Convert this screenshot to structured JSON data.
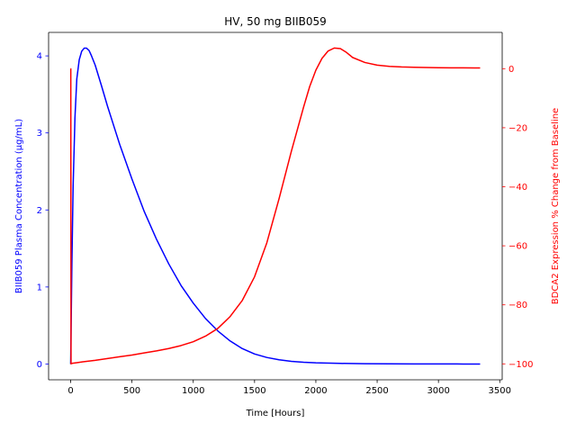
{
  "chart_data": {
    "type": "line",
    "title": "HV, 50 mg BIIB059",
    "xlabel": "Time [Hours]",
    "xlim": [
      -180,
      3520
    ],
    "x_ticks": [
      0,
      500,
      1000,
      1500,
      2000,
      2500,
      3000,
      3500
    ],
    "legend": "none",
    "grid": false,
    "axes": {
      "left": {
        "label": "BIIB059 Plasma Concentration (µg/mL)",
        "color": "#0000ff",
        "ylim": [
          -0.205,
          4.305
        ],
        "ticks": [
          0,
          1,
          2,
          3,
          4
        ]
      },
      "right": {
        "label": "BDCA2 Expression % Change from Baseline",
        "color": "#ff0000",
        "ylim": [
          -105.4,
          12.3
        ],
        "ticks": [
          -100,
          -80,
          -60,
          -40,
          -20,
          0
        ]
      }
    },
    "series": [
      {
        "axis": "left",
        "color": "#0000ff",
        "x": [
          0,
          10,
          20,
          35,
          50,
          70,
          90,
          110,
          130,
          150,
          170,
          200,
          250,
          300,
          400,
          500,
          600,
          700,
          800,
          900,
          1000,
          1100,
          1200,
          1300,
          1400,
          1500,
          1600,
          1700,
          1800,
          1900,
          2000,
          2200,
          2400,
          2600,
          2800,
          3000,
          3200,
          3340
        ],
        "y": [
          0,
          1.3,
          2.3,
          3.2,
          3.7,
          3.95,
          4.06,
          4.1,
          4.1,
          4.07,
          4.0,
          3.88,
          3.62,
          3.35,
          2.85,
          2.4,
          1.98,
          1.62,
          1.3,
          1.02,
          0.79,
          0.59,
          0.43,
          0.3,
          0.2,
          0.13,
          0.085,
          0.055,
          0.035,
          0.023,
          0.015,
          0.008,
          0.004,
          0.002,
          0.001,
          0.0005,
          0.0002,
          0.0001
        ]
      },
      {
        "axis": "right",
        "color": "#ff0000",
        "x": [
          0,
          1,
          3,
          5,
          15,
          50,
          100,
          200,
          300,
          400,
          500,
          600,
          700,
          800,
          900,
          1000,
          1100,
          1200,
          1300,
          1400,
          1500,
          1600,
          1700,
          1800,
          1900,
          1950,
          2000,
          2050,
          2100,
          2150,
          2200,
          2250,
          2300,
          2400,
          2500,
          2600,
          2700,
          2800,
          2900,
          3000,
          3100,
          3200,
          3300,
          3340
        ],
        "y": [
          0,
          0,
          -100,
          -99.9,
          -99.8,
          -99.6,
          -99.3,
          -98.8,
          -98.2,
          -97.6,
          -97.0,
          -96.3,
          -95.6,
          -94.8,
          -93.8,
          -92.5,
          -90.6,
          -88.0,
          -84.0,
          -78.5,
          -70.5,
          -59.0,
          -44.0,
          -28.0,
          -13.0,
          -6.0,
          -0.5,
          3.5,
          6.0,
          7.0,
          6.8,
          5.5,
          3.8,
          2.1,
          1.2,
          0.8,
          0.6,
          0.5,
          0.4,
          0.35,
          0.3,
          0.3,
          0.25,
          0.25
        ]
      }
    ]
  }
}
